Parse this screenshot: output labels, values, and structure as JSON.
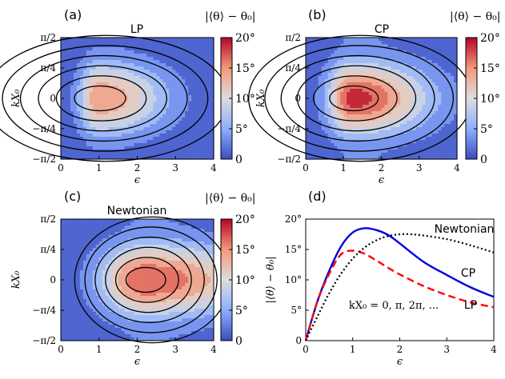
{
  "chart_data": [
    {
      "type": "heatmap",
      "panel_label": "(a)",
      "title": "LP",
      "colorbar_label": "|⟨θ⟩ − θ₀|",
      "xlabel": "ϵ",
      "ylabel": "kX₀",
      "xlim": [
        0,
        4
      ],
      "xticks": [
        "0",
        "1",
        "2",
        "3",
        "4"
      ],
      "yticks": [
        "π/2",
        "π/4",
        "0",
        "−π/4",
        "−π/2"
      ],
      "ylim": [
        -1.5708,
        1.5708
      ],
      "colorbar_range": [
        0,
        20
      ],
      "colorbar_ticks": [
        "20°",
        "15°",
        "10°",
        "5°",
        "0"
      ],
      "peak": {
        "x": 1.0,
        "y": 0,
        "value": 14.8
      },
      "colors": {
        "low": "#3b4cc0",
        "mid": "#dddddd",
        "high": "#b40426"
      }
    },
    {
      "type": "heatmap",
      "panel_label": "(b)",
      "title": "CP",
      "colorbar_label": "|⟨θ⟩ − θ₀|",
      "xlabel": "ϵ",
      "ylabel": "kX₀",
      "xlim": [
        0,
        4
      ],
      "xticks": [
        "0",
        "1",
        "2",
        "3",
        "4"
      ],
      "yticks": [
        "π/2",
        "π/4",
        "0",
        "−π/4",
        "−π/2"
      ],
      "ylim": [
        -1.5708,
        1.5708
      ],
      "colorbar_range": [
        0,
        20
      ],
      "colorbar_ticks": [
        "20°",
        "15°",
        "10°",
        "5°",
        "0"
      ],
      "peak": {
        "x": 1.25,
        "y": 0,
        "value": 18.5
      }
    },
    {
      "type": "heatmap",
      "panel_label": "(c)",
      "title": "Newtonian",
      "colorbar_label": "|⟨θ⟩ − θ₀|",
      "xlabel": "ϵ",
      "ylabel": "kX₀",
      "xlim": [
        0,
        4
      ],
      "xticks": [
        "0",
        "1",
        "2",
        "3",
        "4"
      ],
      "yticks": [
        "π/2",
        "π/4",
        "0",
        "−π/4",
        "−π/2"
      ],
      "ylim": [
        -1.5708,
        1.5708
      ],
      "colorbar_range": [
        0,
        20
      ],
      "colorbar_ticks": [
        "20°",
        "15°",
        "10°",
        "5°",
        "0"
      ],
      "peak": {
        "x": 2.2,
        "y": 0,
        "value": 17.5
      }
    },
    {
      "type": "line",
      "panel_label": "(d)",
      "xlabel": "ϵ",
      "ylabel": "|⟨θ⟩ − θ₀|",
      "xlim": [
        0,
        4
      ],
      "ylim": [
        0,
        20
      ],
      "xticks": [
        "0",
        "1",
        "2",
        "3",
        "4"
      ],
      "yticks": [
        "20°",
        "15°",
        "10°",
        "5°",
        "0"
      ],
      "annotation": "kX₀ = 0, π, 2π, ...",
      "series": [
        {
          "name": "CP",
          "style": "solid",
          "color": "#0000dd",
          "x": [
            0,
            0.25,
            0.5,
            0.75,
            1.0,
            1.25,
            1.5,
            1.75,
            2.0,
            2.5,
            3.0,
            3.5,
            4.0
          ],
          "values": [
            0,
            6.5,
            11.5,
            15.5,
            17.8,
            18.5,
            18.2,
            17.4,
            16.0,
            13.0,
            10.8,
            8.8,
            7.2
          ]
        },
        {
          "name": "LP",
          "style": "dashed",
          "color": "#ff0000",
          "x": [
            0,
            0.25,
            0.5,
            0.75,
            1.0,
            1.25,
            1.5,
            1.75,
            2.0,
            2.5,
            3.0,
            3.5,
            4.0
          ],
          "values": [
            0,
            6.5,
            11.0,
            14.2,
            14.8,
            14.3,
            13.2,
            12.0,
            10.9,
            9.0,
            7.5,
            6.3,
            5.5
          ]
        },
        {
          "name": "Newtonian",
          "style": "dotted",
          "color": "#000000",
          "x": [
            0,
            0.25,
            0.5,
            0.75,
            1.0,
            1.25,
            1.5,
            1.75,
            2.0,
            2.25,
            2.5,
            3.0,
            3.5,
            4.0
          ],
          "values": [
            0,
            4.0,
            7.8,
            11.0,
            13.5,
            15.3,
            16.5,
            17.2,
            17.5,
            17.5,
            17.3,
            16.7,
            15.7,
            14.5
          ]
        }
      ]
    }
  ]
}
